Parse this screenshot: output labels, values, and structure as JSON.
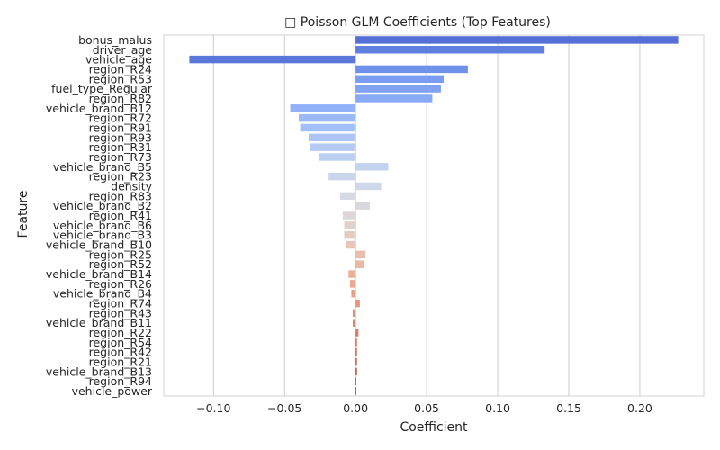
{
  "chart_data": {
    "type": "bar",
    "orientation": "horizontal",
    "title": "□ Poisson GLM Coefficients (Top Features)",
    "xlabel": "Coefficient",
    "ylabel": "Feature",
    "xlim": [
      -0.135,
      0.245
    ],
    "xticks": [
      -0.1,
      -0.05,
      0.0,
      0.05,
      0.1,
      0.15,
      0.2
    ],
    "xtick_labels": [
      "−0.10",
      "−0.05",
      "0.00",
      "0.05",
      "0.10",
      "0.15",
      "0.20"
    ],
    "grid": "x",
    "categories": [
      "bonus_malus",
      "driver_age",
      "vehicle_age",
      "region_R24",
      "region_R53",
      "fuel_type_Regular",
      "region_R82",
      "vehicle_brand_B12",
      "region_R72",
      "region_R91",
      "region_R93",
      "region_R31",
      "region_R73",
      "vehicle_brand_B5",
      "region_R23",
      "density",
      "region_R83",
      "vehicle_brand_B2",
      "region_R41",
      "vehicle_brand_B6",
      "vehicle_brand_B3",
      "vehicle_brand_B10",
      "region_R25",
      "region_R52",
      "vehicle_brand_B14",
      "region_R26",
      "vehicle_brand_B4",
      "region_R74",
      "region_R43",
      "vehicle_brand_B11",
      "region_R22",
      "region_R54",
      "region_R42",
      "region_R21",
      "vehicle_brand_B13",
      "region_R94",
      "vehicle_power"
    ],
    "values": [
      0.227,
      0.133,
      -0.117,
      0.079,
      0.062,
      0.06,
      0.054,
      -0.046,
      -0.04,
      -0.039,
      -0.033,
      -0.032,
      -0.026,
      0.023,
      -0.019,
      0.018,
      -0.011,
      0.01,
      -0.009,
      -0.008,
      -0.008,
      -0.007,
      0.007,
      0.006,
      -0.005,
      -0.004,
      -0.003,
      0.003,
      -0.002,
      -0.002,
      0.002,
      0.001,
      0.001,
      0.001,
      0.001,
      0.0005,
      0.0003
    ],
    "colors": [
      "#5470d6",
      "#5f7fdf",
      "#5b77d9",
      "#6f91e9",
      "#7a9df1",
      "#80a2f3",
      "#88aaf6",
      "#91b1f8",
      "#9bb8f8",
      "#a3bff9",
      "#acc5f6",
      "#b4caf3",
      "#bccff1",
      "#c3d3ef",
      "#c9d6ec",
      "#cfd8e8",
      "#d4d9e3",
      "#d8d8de",
      "#dcd6d6",
      "#e0d1cb",
      "#e4ccc1",
      "#e6c6b7",
      "#e8bfad",
      "#e9b7a3",
      "#e9b09a",
      "#e9a890",
      "#e8a087",
      "#e5977d",
      "#e28f74",
      "#de866b",
      "#da7c62",
      "#d5735a",
      "#cf6952",
      "#c9604b",
      "#c25744",
      "#bb4d3d",
      "#b44437"
    ]
  }
}
